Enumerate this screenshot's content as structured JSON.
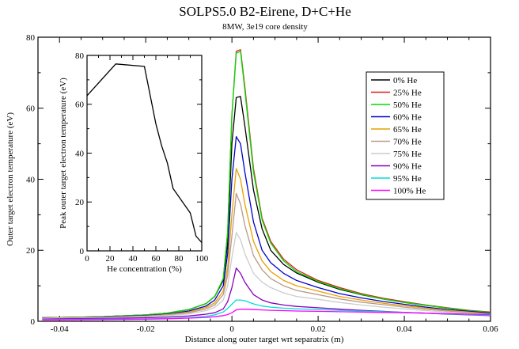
{
  "chart_data": [
    {
      "type": "line",
      "title": "SOLPS5.0 B2-Eirene, D+C+He",
      "subtitle": "8MW, 3e19 core density",
      "xlabel": "Distance along outer target wrt separatrix (m)",
      "ylabel": "Outer target electron temperature (eV)",
      "xlim": [
        -0.045,
        0.06
      ],
      "ylim": [
        0,
        80
      ],
      "xticks": [
        -0.04,
        -0.02,
        0,
        0.02,
        0.04,
        0.06
      ],
      "xtick_labels": [
        "-0.04",
        "-0.02",
        "0",
        "0.02",
        "0.04",
        "0.06"
      ],
      "yticks": [
        0,
        20,
        40,
        60,
        80
      ],
      "ytick_labels": [
        "0",
        "20",
        "40",
        "60",
        "80"
      ],
      "legend_position": "top-right",
      "x": [
        -0.044,
        -0.04,
        -0.03,
        -0.02,
        -0.015,
        -0.01,
        -0.006,
        -0.004,
        -0.002,
        -0.001,
        0,
        0.001,
        0.002,
        0.003,
        0.005,
        0.007,
        0.009,
        0.012,
        0.015,
        0.02,
        0.025,
        0.03,
        0.035,
        0.04,
        0.045,
        0.05,
        0.055,
        0.06
      ],
      "series": [
        {
          "name": "0% He",
          "color": "#000000",
          "values": [
            1.0,
            1.1,
            1.3,
            1.8,
            2.3,
            3.3,
            5.0,
            7.0,
            11.5,
            22.0,
            50.0,
            63.0,
            63.3,
            55.0,
            37.0,
            26.0,
            20.0,
            16.0,
            13.6,
            11.0,
            9.0,
            7.5,
            6.3,
            5.3,
            4.5,
            3.7,
            3.0,
            2.5
          ]
        },
        {
          "name": "25% He",
          "color": "#e31a1c",
          "values": [
            1.0,
            1.1,
            1.3,
            1.8,
            2.3,
            3.3,
            5.0,
            7.0,
            12.0,
            25.0,
            58.0,
            76.0,
            76.5,
            66.0,
            43.0,
            29.0,
            22.5,
            17.5,
            14.5,
            11.5,
            9.5,
            7.8,
            6.5,
            5.5,
            4.6,
            3.8,
            3.1,
            2.6
          ]
        },
        {
          "name": "50% He",
          "color": "#00dd00",
          "values": [
            1.0,
            1.1,
            1.3,
            1.8,
            2.3,
            3.3,
            5.0,
            7.0,
            12.0,
            25.0,
            58.0,
            75.5,
            76.0,
            65.0,
            42.0,
            28.5,
            22.0,
            17.0,
            14.0,
            11.2,
            9.2,
            7.6,
            6.3,
            5.3,
            4.5,
            3.7,
            3.0,
            2.5
          ]
        },
        {
          "name": "60% He",
          "color": "#0000cc",
          "values": [
            1.0,
            1.0,
            1.2,
            1.6,
            2.0,
            2.9,
            4.3,
            6.0,
            10.0,
            19.0,
            40.0,
            52.0,
            50.0,
            42.0,
            28.0,
            20.0,
            16.5,
            13.5,
            11.5,
            9.5,
            7.8,
            6.6,
            5.6,
            4.8,
            4.0,
            3.3,
            2.8,
            2.3
          ]
        },
        {
          "name": "65% He",
          "color": "#e8a000",
          "values": [
            0.9,
            1.0,
            1.1,
            1.5,
            1.9,
            2.6,
            3.9,
            5.2,
            8.5,
            15.0,
            30.0,
            43.0,
            40.0,
            33.0,
            22.5,
            17.0,
            14.0,
            11.5,
            10.0,
            8.5,
            7.0,
            6.0,
            5.1,
            4.4,
            3.7,
            3.1,
            2.6,
            2.1
          ]
        },
        {
          "name": "70% He",
          "color": "#b89a8a",
          "values": [
            0.9,
            0.9,
            1.0,
            1.4,
            1.8,
            2.4,
            3.5,
            4.6,
            7.5,
            13.0,
            24.0,
            36.0,
            33.0,
            27.0,
            18.5,
            14.5,
            12.0,
            10.0,
            8.7,
            7.5,
            6.3,
            5.4,
            4.7,
            4.0,
            3.4,
            2.9,
            2.4,
            2.0
          ]
        },
        {
          "name": "75% He",
          "color": "#cccccc",
          "values": [
            0.8,
            0.9,
            1.0,
            1.3,
            1.6,
            2.1,
            3.0,
            3.9,
            6.0,
            10.0,
            18.0,
            25.0,
            23.0,
            19.0,
            13.5,
            11.0,
            9.5,
            8.0,
            7.0,
            6.2,
            5.3,
            4.6,
            4.0,
            3.5,
            3.0,
            2.6,
            2.2,
            1.8
          ]
        },
        {
          "name": "90% He",
          "color": "#8800bb",
          "values": [
            0.6,
            0.7,
            0.8,
            1.0,
            1.2,
            1.5,
            2.0,
            2.4,
            3.5,
            5.5,
            9.5,
            15.0,
            13.5,
            11.0,
            7.5,
            6.0,
            5.2,
            4.6,
            4.2,
            3.8,
            3.4,
            3.1,
            2.8,
            2.5,
            2.3,
            2.0,
            1.8,
            1.6
          ]
        },
        {
          "name": "95% He",
          "color": "#00dddd",
          "values": [
            0.5,
            0.5,
            0.6,
            0.7,
            0.8,
            1.0,
            1.4,
            1.8,
            2.6,
            3.6,
            4.8,
            6.0,
            6.0,
            5.8,
            4.9,
            4.3,
            4.0,
            3.7,
            3.5,
            3.3,
            3.1,
            2.9,
            2.7,
            2.5,
            2.3,
            2.1,
            1.9,
            1.7
          ]
        },
        {
          "name": "100% He",
          "color": "#ff00ff",
          "values": [
            0.4,
            0.4,
            0.5,
            0.6,
            0.7,
            0.9,
            1.1,
            1.3,
            1.6,
            1.9,
            2.4,
            3.2,
            3.4,
            3.4,
            3.3,
            3.2,
            3.1,
            3.0,
            2.9,
            2.8,
            2.7,
            2.6,
            2.5,
            2.4,
            2.3,
            2.2,
            2.0,
            1.9
          ]
        }
      ]
    },
    {
      "type": "line",
      "xlabel": "He concentration (%)",
      "ylabel": "Peak outer target electron temperature (eV)",
      "xlim": [
        0,
        100
      ],
      "ylim": [
        0,
        80
      ],
      "xticks": [
        0,
        20,
        40,
        60,
        80,
        100
      ],
      "xtick_labels": [
        "0",
        "20",
        "40",
        "60",
        "80",
        "100"
      ],
      "yticks": [
        0,
        20,
        40,
        60,
        80
      ],
      "ytick_labels": [
        "0",
        "20",
        "40",
        "60",
        "80"
      ],
      "series": [
        {
          "color": "#000000",
          "x": [
            0,
            25,
            50,
            60,
            65,
            70,
            75,
            90,
            95,
            100
          ],
          "values": [
            63.5,
            76.5,
            75.5,
            52.0,
            43.0,
            36.0,
            25.5,
            15.5,
            6.0,
            3.4
          ]
        }
      ]
    }
  ]
}
